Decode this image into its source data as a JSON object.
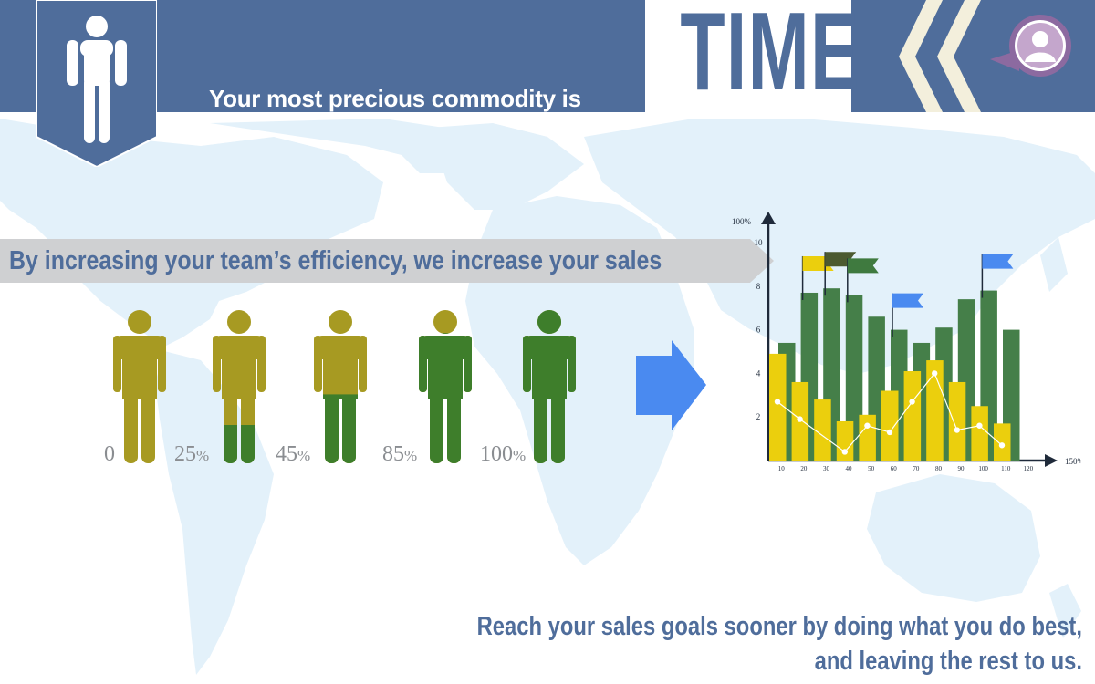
{
  "header": {
    "subtitle": "Your most precious commodity is",
    "title": "TIME"
  },
  "tagline": "By increasing your team’s efficiency, we increase your sales",
  "efficiency_levels": [
    {
      "value": "0",
      "unit": "",
      "fill_fraction": 0
    },
    {
      "value": "25",
      "unit": "%",
      "fill_fraction": 0.25
    },
    {
      "value": "45",
      "unit": "%",
      "fill_fraction": 0.45
    },
    {
      "value": "85",
      "unit": "%",
      "fill_fraction": 0.85
    },
    {
      "value": "100",
      "unit": "%",
      "fill_fraction": 1.0
    }
  ],
  "colors": {
    "brand_blue": "#4f6d9b",
    "person_base": "#a79a22",
    "person_fill": "#3e7e2b",
    "arrow": "#4a8af0",
    "map": "#e3f1fa",
    "bar_green": "#457f49",
    "bar_yellow": "#ebcf0d",
    "flag_yellow": "#ebcf0d",
    "flag_blue": "#4a8af0",
    "flag_green": "#3f7a3f",
    "flag_dark": "#4c5a30"
  },
  "icons": [
    "person-icon",
    "user-avatar-icon",
    "chevron-left-icon",
    "arrow-right-icon",
    "flag-icon"
  ],
  "chart_data": {
    "type": "bar",
    "y_axis_top_label": "100%",
    "x_axis_end_label": "150%",
    "y_ticks": [
      "2",
      "4",
      "6",
      "8",
      "10"
    ],
    "x_ticks": [
      "10",
      "20",
      "30",
      "40",
      "50",
      "60",
      "70",
      "80",
      "90",
      "100",
      "110",
      "120"
    ],
    "ylim": [
      0,
      10
    ],
    "categories": [
      "10",
      "20",
      "30",
      "40",
      "50",
      "60",
      "70",
      "80",
      "90",
      "100",
      "110"
    ],
    "series": [
      {
        "kind": "bar",
        "color": "green",
        "values": [
          5.4,
          7.7,
          7.9,
          7.6,
          6.6,
          6.0,
          5.4,
          6.1,
          7.4,
          7.8,
          6.0
        ]
      },
      {
        "kind": "bar",
        "color": "yellow",
        "values": [
          4.9,
          3.6,
          2.8,
          1.8,
          2.1,
          3.2,
          4.1,
          4.6,
          3.6,
          2.5,
          1.7
        ]
      },
      {
        "kind": "line",
        "color": "white",
        "values": [
          2.7,
          1.9,
          null,
          0.4,
          1.6,
          1.3,
          2.7,
          4.0,
          1.4,
          1.6,
          0.7
        ]
      }
    ],
    "flags": [
      {
        "category": "20",
        "color": "yellow"
      },
      {
        "category": "30",
        "color": "dark"
      },
      {
        "category": "40",
        "color": "green"
      },
      {
        "category": "60",
        "color": "blue"
      },
      {
        "category": "100",
        "color": "blue"
      }
    ]
  },
  "footer": {
    "line1": "Reach your sales goals sooner by doing what you do best,",
    "line2": "and leaving the rest to us."
  }
}
